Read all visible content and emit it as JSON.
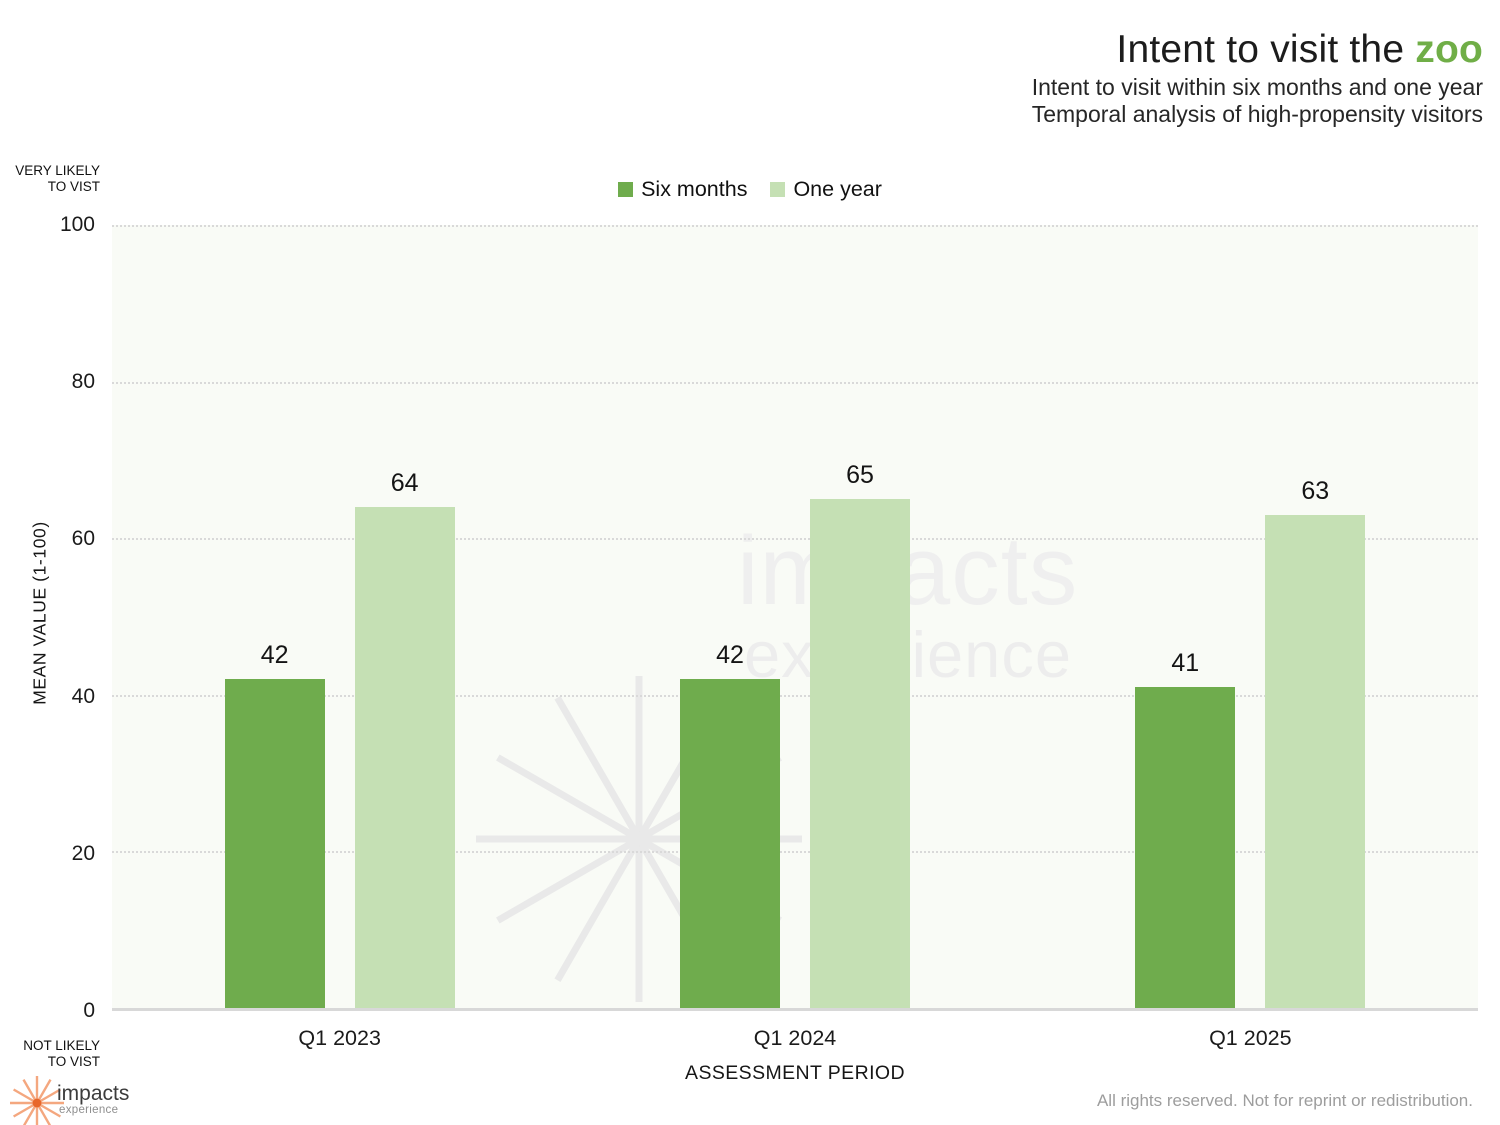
{
  "header": {
    "title_prefix": "Intent to visit the ",
    "title_highlight": "zoo",
    "subtitle_line1": "Intent to visit within six months and one year",
    "subtitle_line2": "Temporal analysis of high-propensity visitors"
  },
  "axis_annotations": {
    "top_line1": "VERY LIKELY",
    "top_line2": "TO VIST",
    "bottom_line1": "NOT LIKELY",
    "bottom_line2": "TO VIST"
  },
  "chart_data": {
    "type": "bar",
    "title": "Intent to visit the zoo",
    "categories": [
      "Q1 2023",
      "Q1 2024",
      "Q1 2025"
    ],
    "series": [
      {
        "name": "Six months",
        "color": "#6FAC4D",
        "values": [
          42,
          42,
          41
        ]
      },
      {
        "name": "One year",
        "color": "#C5E0B4",
        "values": [
          64,
          65,
          63
        ]
      }
    ],
    "xlabel": "ASSESSMENT PERIOD",
    "ylabel": "MEAN VALUE (1-100)",
    "ylim": [
      0,
      100
    ],
    "yticks": [
      0,
      20,
      40,
      60,
      80,
      100
    ],
    "grid": "horizontal-dotted",
    "legend_position": "top-center",
    "plot_background": "#f9fbf6"
  },
  "watermark": {
    "line1": "impacts",
    "line2": "experience"
  },
  "footer": {
    "logo_text": "impacts",
    "logo_subtext": "experience",
    "copyright": "All rights reserved. Not for reprint or redistribution."
  },
  "colors": {
    "title_accent": "#70AE47",
    "bar_dark_green": "#6FAC4D",
    "bar_light_green": "#C5E0B4",
    "gridline": "#d9d9d9",
    "watermark": "#efefef",
    "logo_rays": "#F4A77F",
    "logo_dot": "#E8672B",
    "footer_text": "#9d9d9d"
  }
}
